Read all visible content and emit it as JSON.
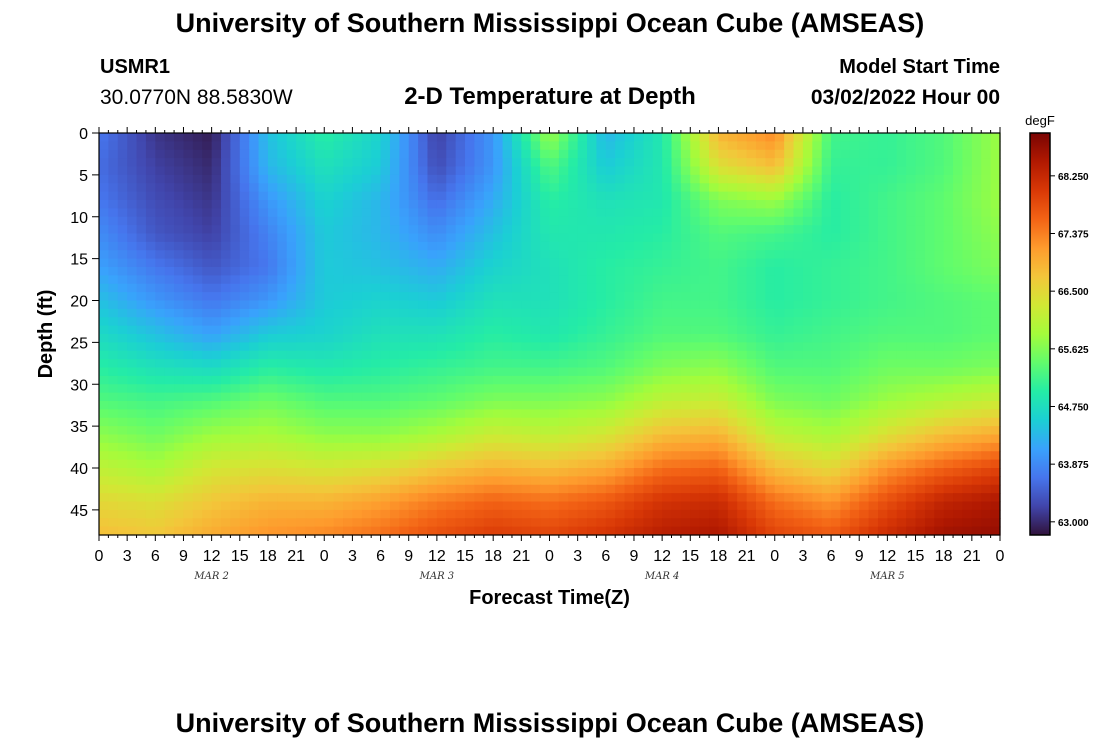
{
  "header": {
    "title": "University of Southern Mississippi Ocean Cube (AMSEAS)",
    "station_id": "USMR1",
    "station_coords": "30.0770N  88.5830W",
    "subtitle": "2-D Temperature at Depth",
    "model_label": "Model Start Time",
    "model_date": "03/02/2022 Hour 00"
  },
  "footer": {
    "title": "University of Southern Mississippi Ocean Cube (AMSEAS)"
  },
  "chart_data": {
    "type": "heatmap",
    "title": "2-D Temperature at Depth",
    "xlabel": "Forecast Time(Z)",
    "ylabel": "Depth (ft)",
    "x_tick_labels": [
      "0",
      "3",
      "6",
      "9",
      "12",
      "15",
      "18",
      "21",
      "0",
      "3",
      "6",
      "9",
      "12",
      "15",
      "18",
      "21",
      "0",
      "3",
      "6",
      "9",
      "12",
      "15",
      "18",
      "21",
      "0",
      "3",
      "6",
      "9",
      "12",
      "15",
      "18",
      "21",
      "0"
    ],
    "x_date_labels": [
      {
        "label": "MAR 2",
        "hour": 12
      },
      {
        "label": "MAR 3",
        "hour": 36
      },
      {
        "label": "MAR 4",
        "hour": 60
      },
      {
        "label": "MAR 5",
        "hour": 84
      }
    ],
    "x_range_hours": [
      0,
      96
    ],
    "y_ticks": [
      0,
      5,
      10,
      15,
      20,
      25,
      30,
      35,
      40,
      45
    ],
    "y_range_ft": [
      0,
      48
    ],
    "y_inverted": true,
    "colorbar": {
      "unit": "degF",
      "ticks": [
        "63.000",
        "63.875",
        "64.750",
        "65.625",
        "66.500",
        "67.375",
        "68.250"
      ],
      "range": [
        62.8,
        68.9
      ],
      "colors": [
        "#30123b",
        "#4145ab",
        "#4675ed",
        "#39a2fc",
        "#1bcfd4",
        "#24eca6",
        "#61fc6c",
        "#a4fc3b",
        "#d1e834",
        "#f3c63a",
        "#fe9b2d",
        "#f36315",
        "#d93806",
        "#b11901",
        "#7a0403"
      ]
    },
    "depths_ft": [
      0,
      4,
      8,
      12,
      16,
      20,
      24,
      28,
      32,
      36,
      40,
      44,
      48
    ],
    "hours": [
      0,
      6,
      12,
      18,
      24,
      30,
      36,
      42,
      48,
      54,
      60,
      66,
      72,
      78,
      84,
      90,
      96
    ],
    "temperature_degF": [
      [
        63.7,
        63.1,
        62.9,
        64.4,
        65.0,
        64.6,
        63.2,
        64.0,
        65.8,
        64.3,
        64.9,
        66.9,
        67.3,
        65.2,
        65.1,
        65.3,
        65.8
      ],
      [
        63.6,
        63.2,
        63.0,
        64.3,
        64.8,
        64.5,
        63.3,
        64.0,
        65.3,
        64.5,
        64.9,
        66.4,
        66.8,
        65.1,
        65.1,
        65.3,
        65.8
      ],
      [
        63.7,
        63.3,
        63.1,
        64.0,
        64.6,
        64.3,
        63.6,
        64.2,
        65.0,
        64.8,
        64.9,
        65.6,
        65.8,
        65.0,
        65.2,
        65.4,
        65.8
      ],
      [
        63.9,
        63.4,
        63.2,
        63.8,
        64.5,
        64.3,
        63.9,
        64.4,
        64.9,
        64.9,
        65.0,
        65.3,
        65.2,
        65.0,
        65.2,
        65.4,
        65.7
      ],
      [
        64.1,
        63.7,
        63.4,
        63.7,
        64.5,
        64.4,
        64.2,
        64.6,
        64.8,
        65.0,
        65.1,
        65.2,
        65.0,
        65.1,
        65.2,
        65.4,
        65.6
      ],
      [
        64.4,
        64.0,
        63.7,
        64.0,
        64.5,
        64.6,
        64.5,
        64.8,
        64.8,
        65.0,
        65.2,
        65.2,
        65.0,
        65.1,
        65.2,
        65.3,
        65.4
      ],
      [
        64.7,
        64.4,
        64.1,
        64.5,
        64.6,
        64.8,
        64.8,
        65.0,
        64.9,
        65.1,
        65.3,
        65.3,
        65.1,
        65.2,
        65.3,
        65.3,
        65.4
      ],
      [
        65.0,
        64.8,
        64.7,
        65.0,
        64.9,
        65.0,
        65.1,
        65.2,
        65.2,
        65.3,
        65.6,
        65.7,
        65.3,
        65.3,
        65.5,
        65.5,
        65.6
      ],
      [
        65.3,
        65.2,
        65.3,
        65.5,
        65.3,
        65.3,
        65.4,
        65.6,
        65.6,
        65.7,
        66.1,
        66.2,
        65.6,
        65.5,
        65.8,
        66.0,
        66.2
      ],
      [
        65.7,
        65.5,
        65.8,
        65.9,
        65.7,
        65.7,
        65.9,
        66.2,
        66.1,
        66.3,
        66.8,
        66.9,
        66.1,
        65.9,
        66.4,
        66.8,
        67.0
      ],
      [
        66.1,
        65.9,
        66.3,
        66.4,
        66.3,
        66.4,
        66.7,
        66.9,
        66.8,
        67.0,
        67.5,
        67.6,
        66.8,
        66.5,
        67.2,
        67.6,
        67.9
      ],
      [
        66.5,
        66.4,
        66.7,
        66.9,
        66.9,
        67.1,
        67.4,
        67.6,
        67.5,
        67.7,
        68.1,
        68.2,
        67.5,
        67.2,
        67.8,
        68.3,
        68.5
      ],
      [
        66.8,
        66.7,
        67.0,
        67.2,
        67.3,
        67.5,
        67.8,
        68.0,
        67.9,
        68.1,
        68.4,
        68.5,
        67.9,
        67.7,
        68.2,
        68.6,
        68.7
      ]
    ]
  }
}
